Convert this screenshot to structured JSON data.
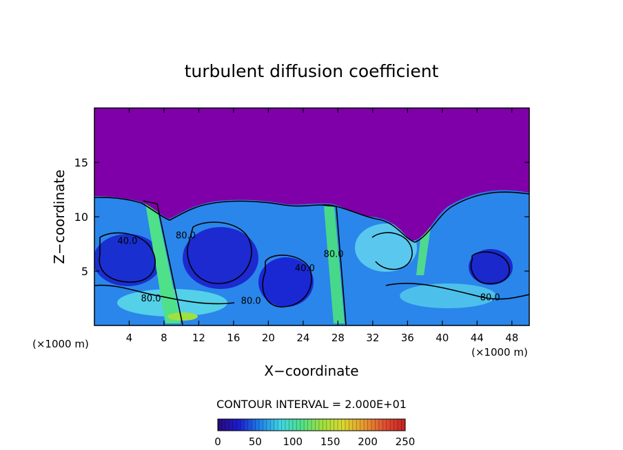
{
  "chart_data": {
    "type": "heatmap",
    "title": "turbulent diffusion coefficient",
    "xlabel": "X−coordinate",
    "ylabel": "Z−coordinate",
    "x_unit": "(×1000 m)",
    "xlim": [
      0,
      50
    ],
    "ylim": [
      0,
      20
    ],
    "x_ticks": [
      4,
      8,
      12,
      16,
      20,
      24,
      28,
      32,
      36,
      40,
      44,
      48
    ],
    "y_ticks": [
      5,
      10,
      15
    ],
    "contour_interval_label": "CONTOUR INTERVAL = 2.000E+01",
    "colorbar": {
      "min": 0,
      "max": 250,
      "ticks": [
        0,
        50,
        100,
        150,
        200,
        250
      ],
      "colors": [
        "#2a0a78",
        "#1c1ccf",
        "#1f7fe8",
        "#3fd6e6",
        "#4fe08a",
        "#9fe040",
        "#d8d830",
        "#e89a30",
        "#e05030",
        "#c82020"
      ]
    },
    "contour_labels": [
      {
        "text": "40.0",
        "x": 3.8,
        "z": 7.5
      },
      {
        "text": "80.0",
        "x": 6.5,
        "z": 2.2
      },
      {
        "text": "80.0",
        "x": 10.5,
        "z": 8.0
      },
      {
        "text": "80.0",
        "x": 18.0,
        "z": 2.0
      },
      {
        "text": "40.0",
        "x": 24.2,
        "z": 5.0
      },
      {
        "text": "80.0",
        "x": 27.5,
        "z": 6.3
      },
      {
        "text": "80.0",
        "x": 45.5,
        "z": 2.3
      }
    ],
    "regions": {
      "top_layer_value": 0,
      "top_layer_color": "#7f00a8",
      "boundary_layer_color": "#2070e0",
      "low_cells_color": "#1c28c8",
      "plume_color": "#50e090"
    }
  }
}
